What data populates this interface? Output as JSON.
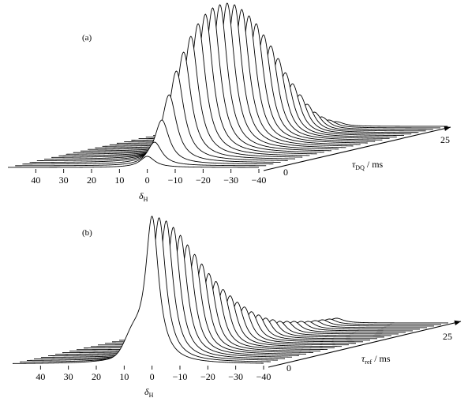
{
  "chart_data": [
    {
      "type": "waterfall",
      "panel_label": "(a)",
      "x_label": "δH",
      "x_ticks": [
        40,
        30,
        20,
        10,
        0,
        -10,
        -20,
        -30,
        -40
      ],
      "x_range": [
        50,
        -40
      ],
      "depth_label": "τDQ / ms",
      "depth_ticks": [
        "0",
        "25"
      ],
      "depth_range": [
        0,
        25
      ],
      "n_spectra": 27,
      "peak_center_ppm": 0,
      "peak_width_ppm": 3.2,
      "peak_heights": [
        0.07,
        0.15,
        0.28,
        0.43,
        0.57,
        0.68,
        0.77,
        0.84,
        0.89,
        0.92,
        0.93,
        0.93,
        0.91,
        0.87,
        0.82,
        0.76,
        0.68,
        0.6,
        0.51,
        0.41,
        0.33,
        0.25,
        0.18,
        0.12,
        0.08,
        0.05,
        0.03
      ]
    },
    {
      "type": "waterfall",
      "panel_label": "(b)",
      "x_label": "δH",
      "x_ticks": [
        40,
        30,
        20,
        10,
        0,
        -10,
        -20,
        -30,
        -40
      ],
      "x_range": [
        50,
        -40
      ],
      "depth_label": "τref / ms",
      "depth_ticks": [
        "0",
        "25"
      ],
      "depth_range": [
        0,
        25
      ],
      "n_spectra": 27,
      "peak_center_ppm": 0,
      "peak_width_ppm": 2.9,
      "shoulder_ppm": 7,
      "shoulder_rel_height": 0.13,
      "peak_heights": [
        0.93,
        0.91,
        0.88,
        0.83,
        0.77,
        0.7,
        0.63,
        0.56,
        0.49,
        0.43,
        0.37,
        0.32,
        0.27,
        0.23,
        0.19,
        0.16,
        0.13,
        0.11,
        0.09,
        0.08,
        0.07,
        0.06,
        0.05,
        0.045,
        0.04,
        0.035,
        0.03
      ]
    }
  ]
}
